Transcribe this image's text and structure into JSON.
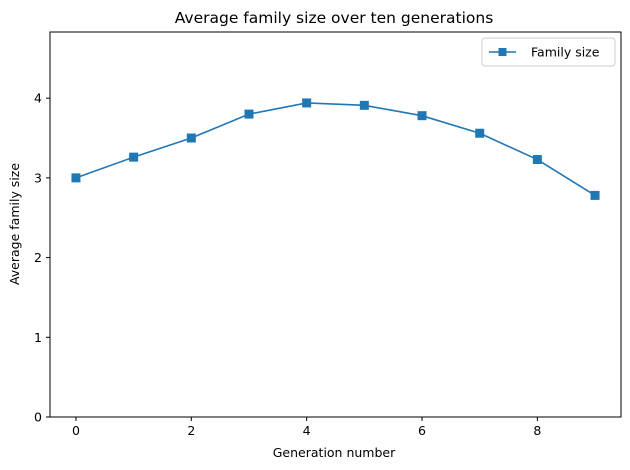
{
  "chart_data": {
    "type": "line",
    "title": "Average family size over ten generations",
    "xlabel": "Generation number",
    "ylabel": "Average family size",
    "x": [
      0,
      1,
      2,
      3,
      4,
      5,
      6,
      7,
      8,
      9
    ],
    "series": [
      {
        "name": "Family size",
        "values": [
          3.0,
          3.26,
          3.5,
          3.8,
          3.94,
          3.91,
          3.78,
          3.56,
          3.23,
          2.78
        ],
        "color": "#1f77b4",
        "marker": "square"
      }
    ],
    "xlim": [
      -0.45,
      9.45
    ],
    "ylim": [
      0,
      4.83
    ],
    "xticks": [
      0,
      2,
      4,
      6,
      8
    ],
    "yticks": [
      0,
      1,
      2,
      3,
      4
    ],
    "grid": false,
    "legend_position": "top-right"
  }
}
